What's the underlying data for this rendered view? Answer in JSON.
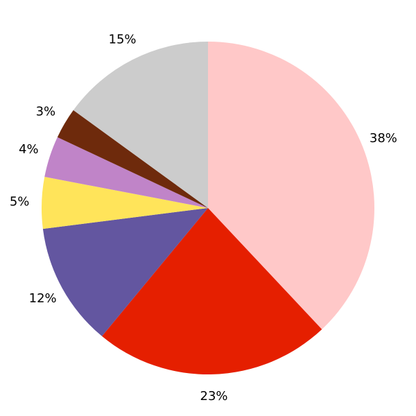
{
  "chart_data": {
    "type": "pie",
    "values": [
      38,
      23,
      12,
      5,
      4,
      3,
      15
    ],
    "value_labels": [
      "38%",
      "23%",
      "12%",
      "5%",
      "4%",
      "3%",
      "15%"
    ],
    "colors": [
      "#ffc8c8",
      "#e51f00",
      "#6356a0",
      "#ffe45a",
      "#c084c8",
      "#6e2a0c",
      "#cccccc"
    ],
    "start_angle": 90,
    "direction": "clockwise"
  }
}
